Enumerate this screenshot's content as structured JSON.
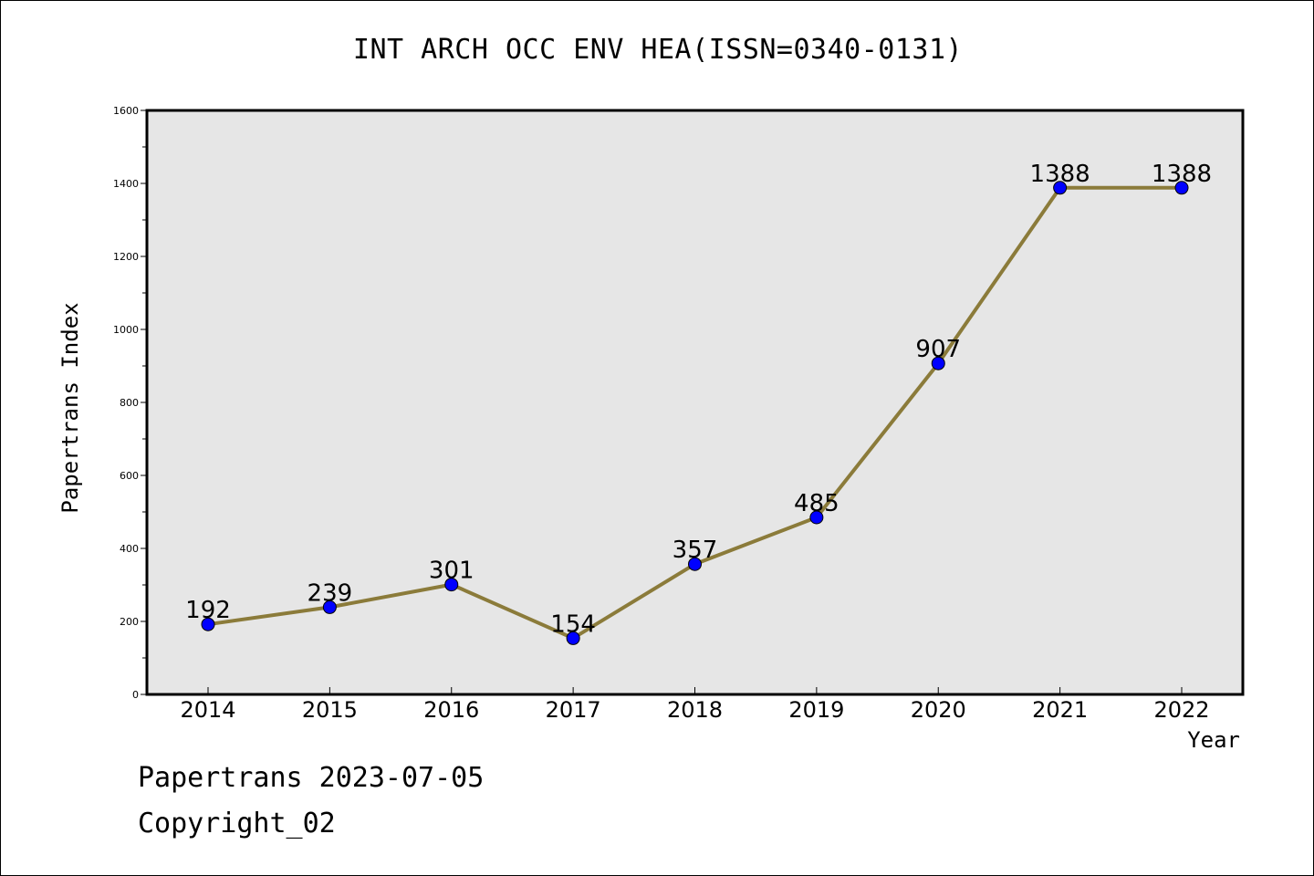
{
  "title": "INT ARCH OCC ENV HEA(ISSN=0340-0131)",
  "footer": {
    "line1": "Papertrans 2023-07-05",
    "line2": "Copyright_02"
  },
  "colors": {
    "line": "#8B7B3A",
    "marker": "#0000FF",
    "plot_bg": "#E6E6E6"
  },
  "chart_data": {
    "type": "line",
    "title": "INT ARCH OCC ENV HEA(ISSN=0340-0131)",
    "xlabel": "Year",
    "ylabel": "Papertrans Index",
    "categories": [
      "2014",
      "2015",
      "2016",
      "2017",
      "2018",
      "2019",
      "2020",
      "2021",
      "2022"
    ],
    "series": [
      {
        "values": [
          192,
          239,
          301,
          154,
          357,
          485,
          907,
          1388,
          1388
        ]
      }
    ],
    "ylim": [
      0,
      1600
    ],
    "yticks": [
      0,
      200,
      400,
      600,
      800,
      1000,
      1200,
      1400,
      1600
    ],
    "grid": false,
    "legend": "none"
  }
}
